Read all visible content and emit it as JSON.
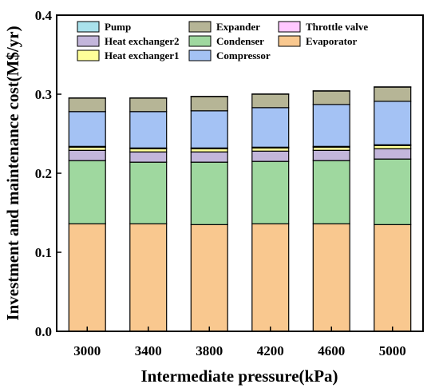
{
  "chart_data": {
    "type": "bar",
    "stacked": true,
    "xlabel": "Intermediate pressure(kPa)",
    "ylabel": "Investment and maintenance cost(M$/yr)",
    "categories": [
      "3000",
      "3400",
      "3800",
      "4200",
      "4600",
      "5000"
    ],
    "ylim": [
      0,
      0.4
    ],
    "yticks": [
      "0.0",
      "0.1",
      "0.2",
      "0.3",
      "0.4"
    ],
    "grid": false,
    "legend_position": "top",
    "series": [
      {
        "name": "Evaporator",
        "color": "#F9C88F",
        "values": [
          0.136,
          0.136,
          0.135,
          0.136,
          0.136,
          0.135
        ]
      },
      {
        "name": "Condenser",
        "color": "#9FD89F",
        "values": [
          0.08,
          0.078,
          0.079,
          0.079,
          0.08,
          0.083
        ]
      },
      {
        "name": "Heat exchanger2",
        "color": "#C3B6DB",
        "values": [
          0.013,
          0.013,
          0.013,
          0.013,
          0.013,
          0.013
        ]
      },
      {
        "name": "Heat exchanger1",
        "color": "#FFFF99",
        "values": [
          0.004,
          0.004,
          0.004,
          0.004,
          0.004,
          0.004
        ]
      },
      {
        "name": "Throttle valve",
        "color": "#FFC8FF",
        "values": [
          0.001,
          0.001,
          0.001,
          0.001,
          0.001,
          0.001
        ]
      },
      {
        "name": "Compressor",
        "color": "#A4C2F4",
        "values": [
          0.044,
          0.046,
          0.047,
          0.05,
          0.053,
          0.055
        ]
      },
      {
        "name": "Expander",
        "color": "#B6B596",
        "values": [
          0.017,
          0.017,
          0.018,
          0.017,
          0.017,
          0.018
        ]
      },
      {
        "name": "Pump",
        "color": "#A9E2EC",
        "values": [
          0.0003,
          0.0003,
          0.0003,
          0.0003,
          0.0003,
          0.0003
        ]
      }
    ],
    "legend_order": [
      "Pump",
      "Expander",
      "Throttle valve",
      "Heat exchanger2",
      "Condenser",
      "Evaporator",
      "Heat exchanger1",
      "Compressor"
    ]
  }
}
